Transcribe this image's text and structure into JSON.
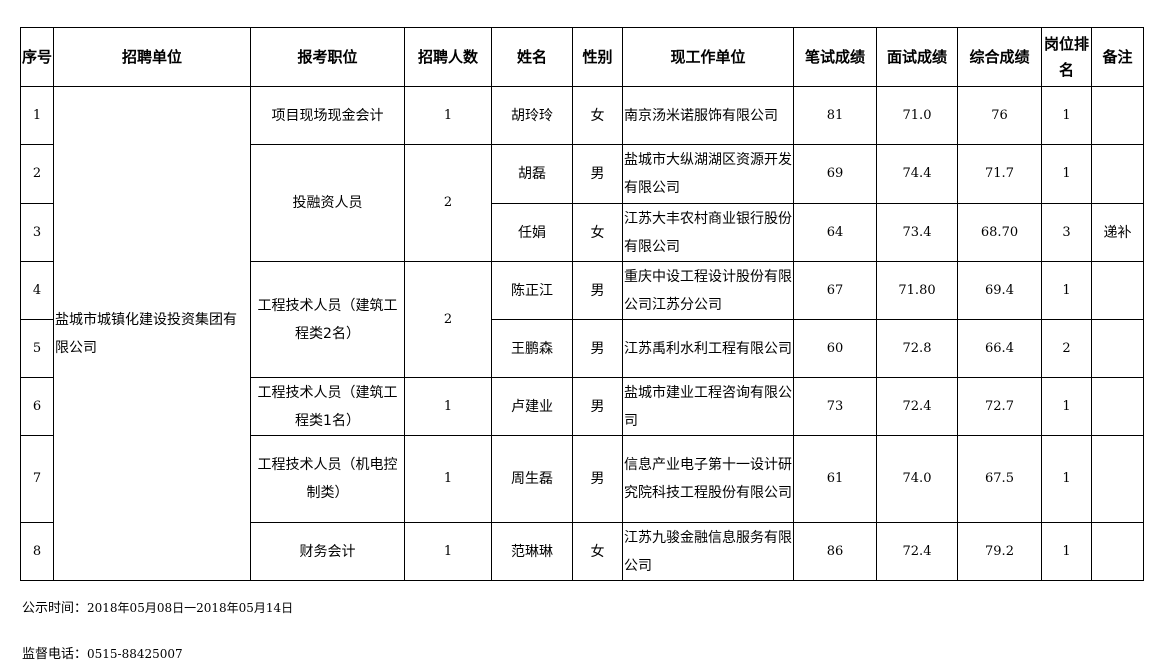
{
  "headers": [
    "序号",
    "招聘单位",
    "报考职位",
    "招聘人数",
    "姓名",
    "性别",
    "现工作单位",
    "笔试成绩",
    "面试成绩",
    "综合成绩",
    "岗位排名",
    "备注"
  ],
  "unit": "盐城市城镇化建设投资集团有限公司",
  "positions": [
    {
      "title": "项目现场现金会计",
      "count": "1",
      "span": 1
    },
    {
      "title": "投融资人员",
      "count": "2",
      "span": 2
    },
    {
      "title": "工程技术人员（建筑工程类2名）",
      "count": "2",
      "span": 2
    },
    {
      "title": "工程技术人员（建筑工程类1名）",
      "count": "1",
      "span": 1
    },
    {
      "title": "工程技术人员（机电控制类）",
      "count": "1",
      "span": 1
    },
    {
      "title": "财务会计",
      "count": "1",
      "span": 1
    }
  ],
  "rows": [
    {
      "seq": "1",
      "name": "胡玲玲",
      "gender": "女",
      "workplace": "南京汤米诺服饰有限公司",
      "written": "81",
      "interview": "71.0",
      "total": "76",
      "rank": "1",
      "note": ""
    },
    {
      "seq": "2",
      "name": "胡磊",
      "gender": "男",
      "workplace": "盐城市大纵湖湖区资源开发有限公司",
      "written": "69",
      "interview": "74.4",
      "total": "71.7",
      "rank": "1",
      "note": ""
    },
    {
      "seq": "3",
      "name": "任娟",
      "gender": "女",
      "workplace": "江苏大丰农村商业银行股份有限公司",
      "written": "64",
      "interview": "73.4",
      "total": "68.70",
      "rank": "3",
      "note": "递补"
    },
    {
      "seq": "4",
      "name": "陈正江",
      "gender": "男",
      "workplace": "重庆中设工程设计股份有限公司江苏分公司",
      "written": "67",
      "interview": "71.80",
      "total": "69.4",
      "rank": "1",
      "note": ""
    },
    {
      "seq": "5",
      "name": "王鹏森",
      "gender": "男",
      "workplace": "江苏禹利水利工程有限公司",
      "written": "60",
      "interview": "72.8",
      "total": "66.4",
      "rank": "2",
      "note": ""
    },
    {
      "seq": "6",
      "name": "卢建业",
      "gender": "男",
      "workplace": "盐城市建业工程咨询有限公司",
      "written": "73",
      "interview": "72.4",
      "total": "72.7",
      "rank": "1",
      "note": ""
    },
    {
      "seq": "7",
      "name": "周生磊",
      "gender": "男",
      "workplace": "信息产业电子第十一设计研究院科技工程股份有限公司",
      "written": "61",
      "interview": "74.0",
      "total": "67.5",
      "rank": "1",
      "note": ""
    },
    {
      "seq": "8",
      "name": "范琳琳",
      "gender": "女",
      "workplace": "江苏九骏金融信息服务有限公司",
      "written": "86",
      "interview": "72.4",
      "total": "79.2",
      "rank": "1",
      "note": ""
    }
  ],
  "footer": {
    "period_label": "公示时间：",
    "period": "2018年05月08日一2018年05月14日",
    "phone_label": "监督电话：",
    "phone": "0515-88425007"
  }
}
